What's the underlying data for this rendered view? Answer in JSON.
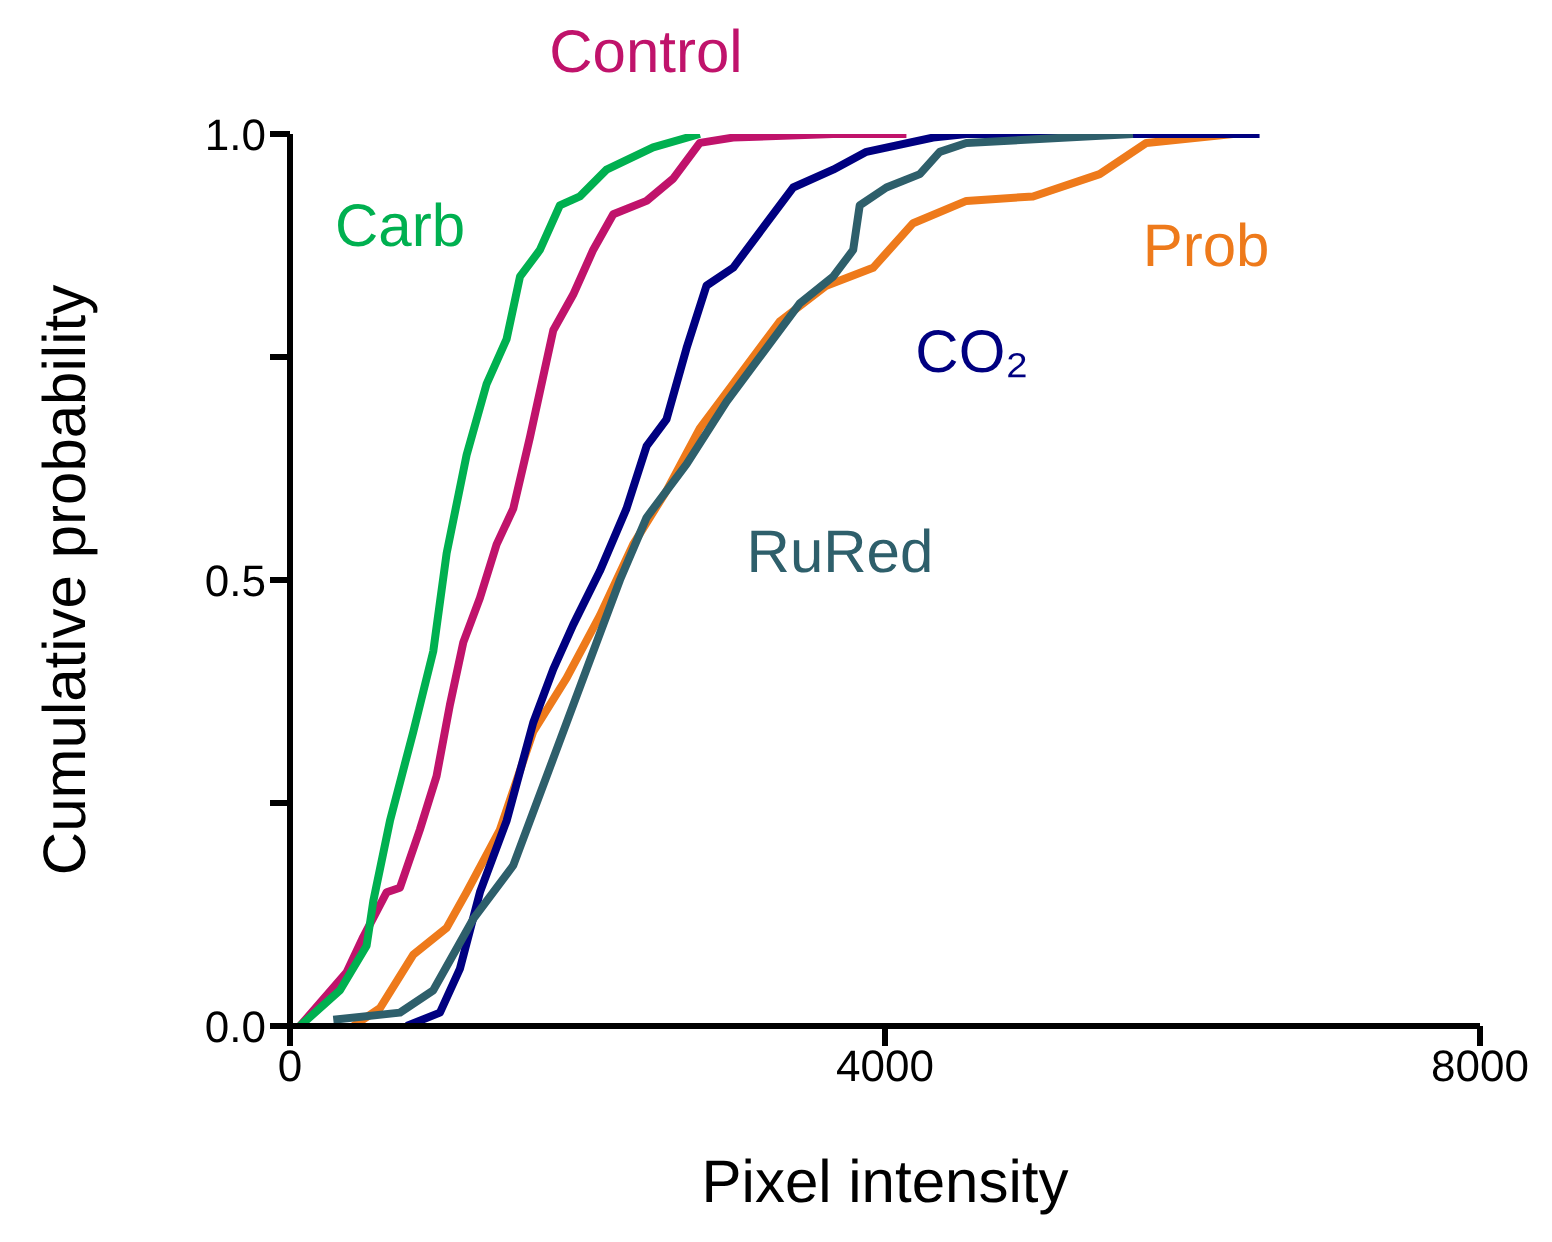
{
  "chart_data": {
    "type": "line",
    "xlabel": "Pixel intensity",
    "ylabel": "Cumulative probability",
    "xlim": [
      0,
      8000
    ],
    "xticks": [
      0,
      4000,
      8000
    ],
    "ylim": [
      0,
      1
    ],
    "yticks": [
      {
        "value": 0,
        "label": "0.0"
      },
      {
        "value": 0.25,
        "label": null
      },
      {
        "value": 0.5,
        "label": "0.5"
      },
      {
        "value": 0.75,
        "label": null
      },
      {
        "value": 1,
        "label": "1.0"
      }
    ],
    "series": [
      {
        "name": "Control",
        "color": "#c0136b",
        "x": [
          67,
          380,
          493,
          650,
          739,
          873,
          985,
          1075,
          1165,
          1277,
          1389,
          1501,
          1613,
          1770,
          1904,
          2038,
          2173,
          2397,
          2576,
          2755,
          2979,
          3651,
          4144
        ],
        "values": [
          0,
          0.06,
          0.1,
          0.15,
          0.155,
          0.22,
          0.28,
          0.36,
          0.43,
          0.48,
          0.54,
          0.58,
          0.66,
          0.78,
          0.82,
          0.87,
          0.91,
          0.925,
          0.95,
          0.99,
          0.996,
          1,
          1
        ]
      },
      {
        "name": "Carb",
        "color": "#00b050",
        "x": [
          67,
          336,
          515,
          560,
          672,
          829,
          963,
          1053,
          1187,
          1322,
          1456,
          1546,
          1680,
          1814,
          1949,
          2128,
          2441,
          2755
        ],
        "values": [
          0,
          0.04,
          0.09,
          0.14,
          0.23,
          0.33,
          0.42,
          0.53,
          0.64,
          0.72,
          0.77,
          0.84,
          0.87,
          0.92,
          0.93,
          0.96,
          0.985,
          1
        ]
      },
      {
        "name": "Prob",
        "color": "#ee7a1b",
        "x": [
          426,
          605,
          829,
          1053,
          1187,
          1411,
          1635,
          1859,
          2083,
          2307,
          2531,
          2755,
          3024,
          3293,
          3606,
          3920,
          4189,
          4547,
          4995,
          5443,
          5757,
          6339
        ],
        "values": [
          0,
          0.02,
          0.08,
          0.11,
          0.15,
          0.22,
          0.33,
          0.39,
          0.46,
          0.54,
          0.6,
          0.67,
          0.73,
          0.79,
          0.83,
          0.85,
          0.9,
          0.925,
          0.93,
          0.955,
          0.99,
          1
        ]
      },
      {
        "name": "CO₂",
        "color": "#000080",
        "x": [
          784,
          1008,
          1142,
          1277,
          1456,
          1635,
          1770,
          1904,
          2083,
          2262,
          2397,
          2531,
          2666,
          2800,
          2979,
          3203,
          3382,
          3651,
          3875,
          4323,
          4547,
          6518
        ],
        "values": [
          0,
          0.015,
          0.064,
          0.15,
          0.23,
          0.34,
          0.4,
          0.45,
          0.51,
          0.58,
          0.65,
          0.68,
          0.76,
          0.83,
          0.85,
          0.9,
          0.94,
          0.96,
          0.98,
          0.996,
          1,
          1
        ]
      },
      {
        "name": "RuRed",
        "color": "#2e5f6b",
        "x": [
          291,
          739,
          963,
          1232,
          1501,
          1770,
          1994,
          2218,
          2397,
          2666,
          2935,
          3203,
          3427,
          3651,
          3786,
          3830,
          4009,
          4234,
          4368,
          4547,
          5667
        ],
        "values": [
          0.007,
          0.015,
          0.04,
          0.12,
          0.18,
          0.3,
          0.4,
          0.5,
          0.57,
          0.63,
          0.7,
          0.76,
          0.81,
          0.84,
          0.87,
          0.92,
          0.94,
          0.955,
          0.98,
          0.99,
          1
        ]
      }
    ]
  }
}
